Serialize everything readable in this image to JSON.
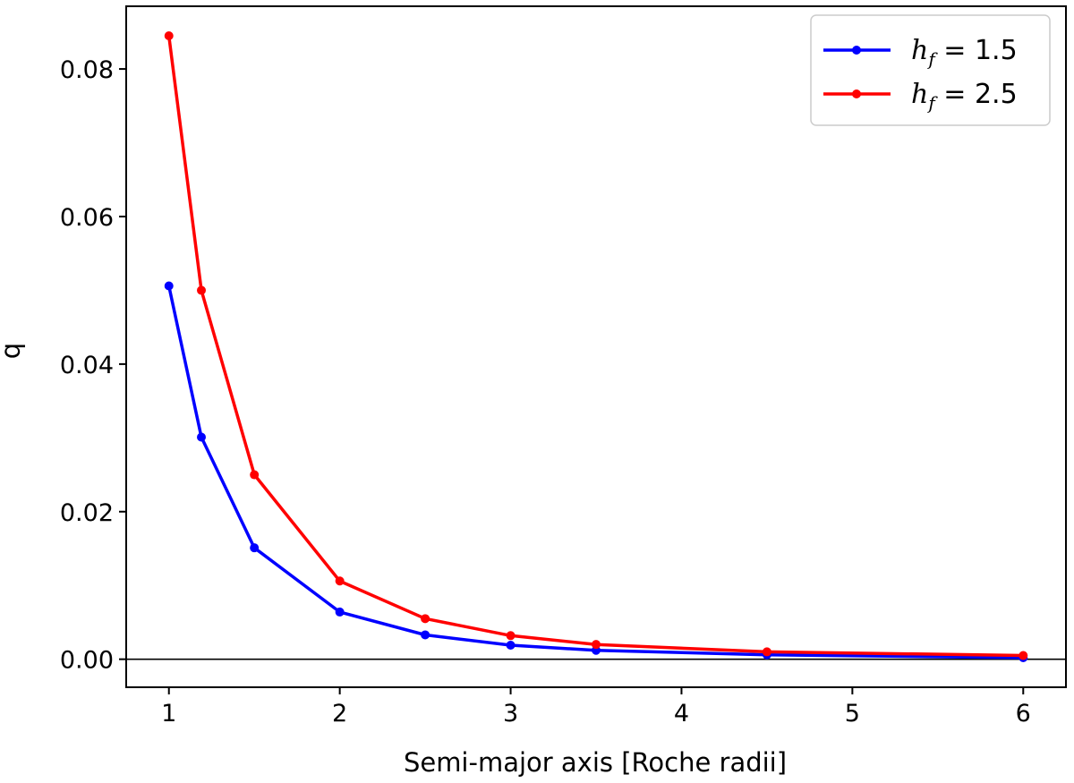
{
  "chart_data": {
    "type": "line",
    "title": "",
    "xlabel": "Semi-major axis [Roche radii]",
    "ylabel": "q",
    "xlim": [
      0.75,
      6.25
    ],
    "ylim": [
      -0.0038,
      0.0885
    ],
    "xticks": [
      1,
      2,
      3,
      4,
      5,
      6
    ],
    "xtick_labels": [
      "1",
      "2",
      "3",
      "4",
      "5",
      "6"
    ],
    "yticks": [
      0.0,
      0.02,
      0.04,
      0.06,
      0.08
    ],
    "ytick_labels": [
      "0.00",
      "0.02",
      "0.04",
      "0.06",
      "0.08"
    ],
    "grid": false,
    "reference_line_y": 0,
    "legend_position": "top-right",
    "series": [
      {
        "name": "h_f = 1.5",
        "legend_var": "h",
        "legend_sub": "f",
        "legend_value": " = 1.5",
        "color": "#0000ff",
        "x": [
          1,
          1.19,
          1.5,
          2,
          2.5,
          3,
          3.5,
          4.5,
          6
        ],
        "y": [
          0.0506,
          0.0301,
          0.0151,
          0.0064,
          0.0033,
          0.0019,
          0.0012,
          0.0006,
          0.0002
        ]
      },
      {
        "name": "h_f = 2.5",
        "legend_var": "h",
        "legend_sub": "f",
        "legend_value": " = 2.5",
        "color": "#ff0000",
        "x": [
          1,
          1.19,
          1.5,
          2,
          2.5,
          3,
          3.5,
          4.5,
          6
        ],
        "y": [
          0.0845,
          0.05,
          0.025,
          0.0106,
          0.0055,
          0.0032,
          0.002,
          0.001,
          0.0005
        ]
      }
    ]
  }
}
